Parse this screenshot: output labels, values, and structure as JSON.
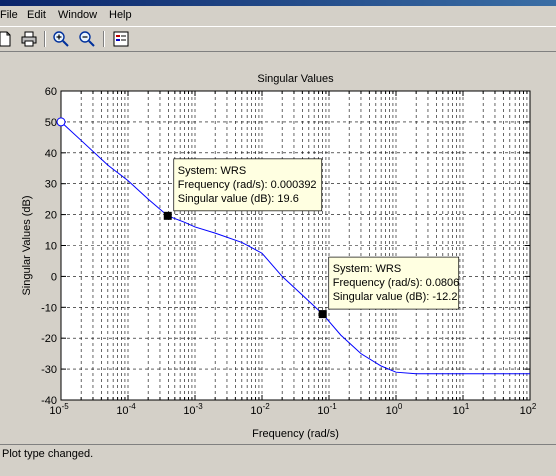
{
  "menu": {
    "file": "File",
    "edit": "Edit",
    "window": "Window",
    "help": "Help"
  },
  "toolbar": {
    "icons": [
      "new-document-icon",
      "print-icon",
      "zoom-in-icon",
      "zoom-out-icon",
      "legend-icon"
    ]
  },
  "status": {
    "text": "Plot type changed."
  },
  "chart_data": {
    "type": "line",
    "title": "Singular Values",
    "xlabel": "Frequency (rad/s)",
    "ylabel": "Singular Values (dB)",
    "x_scale": "log",
    "xlim": [
      1e-05,
      100
    ],
    "ylim": [
      -40,
      60
    ],
    "grid": true,
    "y_ticks": [
      60,
      50,
      40,
      30,
      20,
      10,
      0,
      -10,
      -20,
      -30,
      -40
    ],
    "x_ticks": [
      {
        "base": "10",
        "exp": "-5"
      },
      {
        "base": "10",
        "exp": "-4"
      },
      {
        "base": "10",
        "exp": "-3"
      },
      {
        "base": "10",
        "exp": "-2"
      },
      {
        "base": "10",
        "exp": "-1"
      },
      {
        "base": "10",
        "exp": "0"
      },
      {
        "base": "10",
        "exp": "1"
      },
      {
        "base": "10",
        "exp": "2"
      }
    ],
    "series": [
      {
        "color": "#0000ff",
        "x": [
          1e-05,
          2e-05,
          5e-05,
          0.0001,
          0.0002,
          0.000392,
          0.0007,
          0.001,
          0.002,
          0.005,
          0.01,
          0.02,
          0.05,
          0.0806,
          0.15,
          0.3,
          0.6,
          1,
          2,
          10,
          100
        ],
        "y": [
          50,
          44,
          36,
          31,
          25,
          19.6,
          17.5,
          16,
          14,
          11,
          7.5,
          0,
          -8,
          -12.2,
          -19,
          -25,
          -29,
          -31,
          -31.5,
          -31.5,
          -31.5
        ]
      }
    ],
    "markers": [
      {
        "x": 1e-05,
        "y": 50,
        "style": "hollow-circle"
      }
    ],
    "annotations": [
      {
        "x": 0.000392,
        "y": 19.6,
        "lines": [
          "System: WRS",
          "Frequency (rad/s): 0.000392",
          "Singular value (dB): 19.6"
        ]
      },
      {
        "x": 0.0806,
        "y": -12.2,
        "lines": [
          "System: WRS",
          "Frequency (rad/s): 0.0806",
          "Singular value (dB): -12.2"
        ]
      }
    ]
  }
}
